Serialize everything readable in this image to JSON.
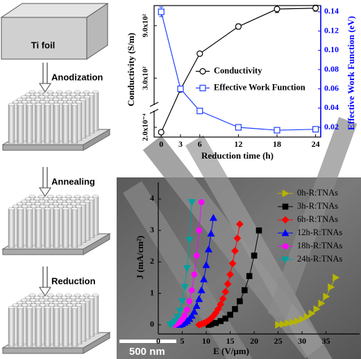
{
  "schematic": {
    "foil_label": "Ti foil",
    "steps": [
      "Anodization",
      "Annealing",
      "Reduction"
    ]
  },
  "image": {
    "scale_bar": "500 nm"
  },
  "chart_data": [
    {
      "type": "line",
      "xlabel": "Reduction time (h)",
      "ylabel": "Conductivity (S/m)",
      "y2label": "Effective Work Function (eV)",
      "x": [
        0,
        3,
        6,
        12,
        18,
        24
      ],
      "xlim": [
        -1.1,
        24.8
      ],
      "xticks": [
        0,
        3,
        6,
        12,
        18,
        24
      ],
      "ylim": [
        0,
        1130
      ],
      "ylim_lower": [
        0.00013,
        0.000315
      ],
      "axis_break": true,
      "yticks": [
        {
          "value": 0.0002,
          "label": "2.0x10⁻⁴"
        },
        {
          "value": 300,
          "label": "3.0x10²"
        },
        {
          "value": 900,
          "label": "9.0x10²"
        }
      ],
      "y2lim": [
        0.0099,
        0.1465
      ],
      "y2color": "#0000ff",
      "y2ticks": [
        0.02,
        0.04,
        0.06,
        0.08,
        {
          "value": 0.1,
          "label": "0.10"
        },
        0.12,
        0.14
      ],
      "legend": "center-right",
      "series": [
        {
          "name": "Conductivity",
          "color": "#000000",
          "marker": "circle",
          "values": [
            0.000165,
            170,
            580,
            890,
            1090,
            1100
          ],
          "errors": [
            0,
            0,
            0,
            30,
            40,
            35
          ]
        },
        {
          "name": "Effective Work Function",
          "color": "#1f3fff",
          "marker": "square",
          "axis": "y2",
          "values": [
            0.14,
            0.06,
            0.037,
            0.02,
            0.017,
            0.018
          ],
          "errors": [
            0.005,
            0,
            0,
            0,
            0,
            0
          ]
        }
      ]
    },
    {
      "type": "line",
      "xlabel": "E (V/μm)",
      "ylabel": "J (mA/cm²)",
      "xlim": [
        0,
        42
      ],
      "xticks": [
        0,
        5,
        10,
        15,
        20,
        25,
        30,
        35
      ],
      "ylim": [
        -0.29,
        4.53
      ],
      "yticks": [
        0,
        1,
        2,
        3,
        4
      ],
      "legend": "upper-right",
      "series": [
        {
          "name": "0h-R:TNAs",
          "color": "#b5b500",
          "marker": "triangle-right",
          "x": [
            25,
            26,
            27,
            28,
            29,
            30,
            31,
            32,
            33,
            34,
            35,
            36,
            37
          ],
          "values": [
            0,
            0.02,
            0.05,
            0.08,
            0.12,
            0.18,
            0.26,
            0.36,
            0.5,
            0.68,
            0.9,
            1.2,
            1.5
          ]
        },
        {
          "name": "3h-R:TNAs",
          "color": "#000000",
          "marker": "square",
          "x": [
            10.5,
            11,
            12,
            13,
            14,
            15,
            16,
            17,
            18,
            19,
            20,
            21
          ],
          "values": [
            0,
            0.02,
            0.06,
            0.12,
            0.2,
            0.32,
            0.5,
            0.75,
            1.1,
            1.55,
            2.2,
            3.0
          ]
        },
        {
          "name": "6h-R:TNAs",
          "color": "#ff0000",
          "marker": "diamond",
          "x": [
            8.5,
            9,
            9.5,
            10,
            10.5,
            11,
            11.5,
            12,
            12.5,
            13,
            13.5,
            14,
            14.5,
            15,
            15.5,
            16,
            16.5,
            17
          ],
          "values": [
            0,
            0.02,
            0.05,
            0.09,
            0.14,
            0.2,
            0.28,
            0.38,
            0.5,
            0.65,
            0.83,
            1.05,
            1.3,
            1.6,
            1.95,
            2.35,
            2.75,
            3.2
          ]
        },
        {
          "name": "12h-R:TNAs",
          "color": "#0000ff",
          "marker": "triangle-up",
          "x": [
            4.5,
            5,
            5.5,
            6,
            6.5,
            7,
            7.5,
            8,
            8.5,
            9,
            9.5,
            10,
            10.5,
            11,
            11.5
          ],
          "values": [
            0,
            0.03,
            0.07,
            0.12,
            0.19,
            0.29,
            0.42,
            0.6,
            0.82,
            1.1,
            1.45,
            1.9,
            2.4,
            2.9,
            3.4
          ]
        },
        {
          "name": "18h-R:TNAs",
          "color": "#ff00ff",
          "marker": "circle",
          "x": [
            3.5,
            4,
            4.5,
            5,
            5.5,
            6,
            6.5,
            7,
            7.5,
            8,
            8.5,
            9
          ],
          "values": [
            0,
            0.04,
            0.09,
            0.17,
            0.3,
            0.48,
            0.75,
            1.1,
            1.6,
            2.2,
            3.0,
            3.9
          ]
        },
        {
          "name": "24h-R:TNAs",
          "color": "#00a0a0",
          "marker": "triangle-down",
          "x": [
            2.5,
            3,
            3.5,
            4,
            4.5,
            5,
            5.5,
            6,
            6.5,
            7
          ],
          "values": [
            0,
            0.05,
            0.12,
            0.25,
            0.45,
            0.75,
            1.2,
            1.8,
            2.7,
            3.9
          ]
        }
      ]
    }
  ]
}
